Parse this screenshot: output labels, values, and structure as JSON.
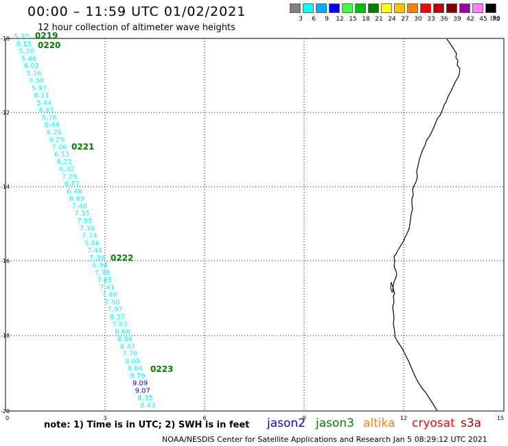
{
  "header": {
    "title": "00:00 – 11:59 UTC 01/02/2021",
    "subtitle": "12 hour collection of altimeter wave heights"
  },
  "color_scale": {
    "labels": [
      "3",
      "6",
      "9",
      "12",
      "15",
      "18",
      "21",
      "24",
      "27",
      "30",
      "33",
      "36",
      "39",
      "42",
      "45",
      "70"
    ],
    "unit": "(ft)",
    "colors": [
      "#808080",
      "#00ffff",
      "#00b0ff",
      "#0000ff",
      "#40ff40",
      "#00c000",
      "#008000",
      "#ffff00",
      "#ffc000",
      "#ff8000",
      "#ff0000",
      "#c00000",
      "#800000",
      "#a000a0",
      "#ff80ff",
      "#000000"
    ]
  },
  "axes": {
    "x_labels": [
      "0",
      "3",
      "6",
      "9",
      "12",
      "15"
    ],
    "y_labels": [
      "-10",
      "-12",
      "-14",
      "-16",
      "-18",
      "-20"
    ]
  },
  "track": {
    "readings": [
      {
        "value": "5.32",
        "color": "#00ffff"
      },
      {
        "value": "6.15",
        "color": "#00ffff"
      },
      {
        "value": "5.30",
        "color": "#00ffff"
      },
      {
        "value": "5.46",
        "color": "#00ffff"
      },
      {
        "value": "6.02",
        "color": "#00ffff"
      },
      {
        "value": "5.16",
        "color": "#00ffff"
      },
      {
        "value": "5.50",
        "color": "#00ffff"
      },
      {
        "value": "5.97",
        "color": "#00ffff"
      },
      {
        "value": "6.11",
        "color": "#00ffff"
      },
      {
        "value": "5.44",
        "color": "#00ffff"
      },
      {
        "value": "6.65",
        "color": "#00ffff"
      },
      {
        "value": "5.76",
        "color": "#00ffff"
      },
      {
        "value": "6.44",
        "color": "#00ffff"
      },
      {
        "value": "6.26",
        "color": "#00ffff"
      },
      {
        "value": "6.29",
        "color": "#00ffff"
      },
      {
        "value": "7.06",
        "color": "#00ffff"
      },
      {
        "value": "6.53",
        "color": "#00ffff"
      },
      {
        "value": "6.23",
        "color": "#00ffff"
      },
      {
        "value": "6.32",
        "color": "#00ffff"
      },
      {
        "value": "7.29",
        "color": "#00ffff"
      },
      {
        "value": "6.77",
        "color": "#00ffff"
      },
      {
        "value": "6.48",
        "color": "#00ffff"
      },
      {
        "value": "6.69",
        "color": "#00ffff"
      },
      {
        "value": "7.40",
        "color": "#00ffff"
      },
      {
        "value": "7.35",
        "color": "#00ffff"
      },
      {
        "value": "7.95",
        "color": "#00ffff"
      },
      {
        "value": "7.30",
        "color": "#00ffff"
      },
      {
        "value": "7.74",
        "color": "#00ffff"
      },
      {
        "value": "5.86",
        "color": "#00ffff"
      },
      {
        "value": "7.48",
        "color": "#00ffff"
      },
      {
        "value": "7.39",
        "color": "#00ffff"
      },
      {
        "value": "6.94",
        "color": "#00ffff"
      },
      {
        "value": "7.78",
        "color": "#00ffff"
      },
      {
        "value": "7.85",
        "color": "#00ffff"
      },
      {
        "value": "7.41",
        "color": "#00ffff"
      },
      {
        "value": "7.60",
        "color": "#00ffff"
      },
      {
        "value": "7.50",
        "color": "#00ffff"
      },
      {
        "value": "7.97",
        "color": "#00ffff"
      },
      {
        "value": "8.37",
        "color": "#00ffff"
      },
      {
        "value": "7.83",
        "color": "#00ffff"
      },
      {
        "value": "8.68",
        "color": "#00ffff"
      },
      {
        "value": "8.66",
        "color": "#00ffff"
      },
      {
        "value": "8.43",
        "color": "#00ffff"
      },
      {
        "value": "7.70",
        "color": "#00ffff"
      },
      {
        "value": "8.09",
        "color": "#00ffff"
      },
      {
        "value": "8.84",
        "color": "#00ffff"
      },
      {
        "value": "8.79",
        "color": "#00ffff"
      },
      {
        "value": "9.09",
        "color": "#0000ff"
      },
      {
        "value": "9.07",
        "color": "#0000ff"
      },
      {
        "value": "8.35",
        "color": "#00ffff"
      },
      {
        "value": "8.43",
        "color": "#00ffff"
      }
    ],
    "time_labels": [
      "0219",
      "0220",
      "0221",
      "0222",
      "0223"
    ],
    "time_color": "#008000"
  },
  "footer": {
    "note": "note:  1) Time is in UTC;  2) SWH is in feet",
    "satellites": [
      {
        "name": "jason2",
        "color": "#0000ff"
      },
      {
        "name": "jason3",
        "color": "#008000"
      },
      {
        "name": "altika",
        "color": "#ff8000"
      },
      {
        "name": "cryosat",
        "color": "#ff0000"
      },
      {
        "name": "s3a",
        "color": "#b00000"
      }
    ],
    "credit": "NOAA/NESDIS Center for Satellite Applications and Research    Jan  5 08:29:12 UTC 2021"
  }
}
